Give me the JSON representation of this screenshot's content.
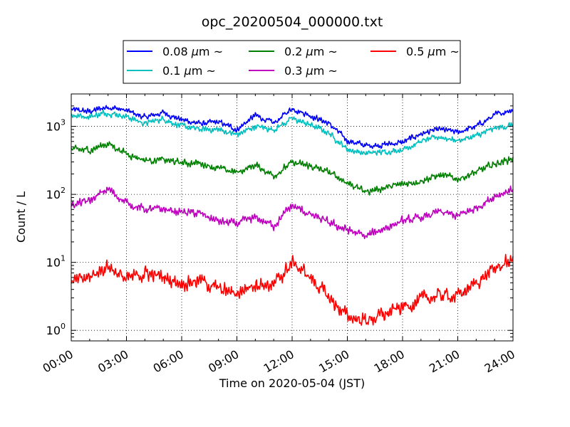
{
  "chart_data": {
    "type": "line",
    "title": "opc_20200504_000000.txt",
    "xlabel": "Time on 2020-05-04 (JST)",
    "ylabel": "Count / L",
    "xlim": [
      "2020-05-04 00:00",
      "2020-05-05 00:00"
    ],
    "ylim": [
      0.7,
      3000
    ],
    "yscale": "log",
    "grid": true,
    "legend_position": "top-center",
    "legend_columns": 3,
    "x_ticks": [
      "00:00",
      "03:00",
      "06:00",
      "09:00",
      "12:00",
      "15:00",
      "18:00",
      "21:00",
      "24:00"
    ],
    "y_ticks": [
      {
        "base": "10",
        "exp": "0"
      },
      {
        "base": "10",
        "exp": "1"
      },
      {
        "base": "10",
        "exp": "2"
      },
      {
        "base": "10",
        "exp": "3"
      }
    ],
    "x": [
      "00:00",
      "01:00",
      "02:00",
      "03:00",
      "04:00",
      "05:00",
      "06:00",
      "07:00",
      "08:00",
      "09:00",
      "10:00",
      "11:00",
      "12:00",
      "13:00",
      "14:00",
      "15:00",
      "16:00",
      "17:00",
      "18:00",
      "19:00",
      "20:00",
      "21:00",
      "22:00",
      "23:00",
      "24:00"
    ],
    "series": [
      {
        "name_value": "0.08",
        "name_unit": "μm",
        "name_suffix": "~",
        "color": "#0000ff",
        "values": [
          1750,
          1650,
          1950,
          1700,
          1350,
          1600,
          1250,
          1100,
          1150,
          900,
          1450,
          1100,
          1850,
          1450,
          1100,
          620,
          520,
          540,
          580,
          780,
          900,
          820,
          1000,
          1450,
          1800
        ],
        "noise": 0.05
      },
      {
        "name_value": "0.1",
        "name_unit": "μm",
        "name_suffix": "~",
        "color": "#00bfbf",
        "values": [
          1450,
          1400,
          1600,
          1400,
          1100,
          1300,
          1000,
          900,
          900,
          750,
          1000,
          900,
          1300,
          1050,
          800,
          460,
          400,
          420,
          460,
          600,
          700,
          620,
          720,
          930,
          1050
        ],
        "noise": 0.05
      },
      {
        "name_value": "0.2",
        "name_unit": "μm",
        "name_suffix": "~",
        "color": "#008000",
        "values": [
          450,
          450,
          560,
          400,
          320,
          320,
          290,
          290,
          240,
          210,
          270,
          190,
          290,
          260,
          210,
          150,
          110,
          125,
          140,
          160,
          190,
          170,
          210,
          280,
          340
        ],
        "noise": 0.06
      },
      {
        "name_value": "0.3",
        "name_unit": "μm",
        "name_suffix": "~",
        "color": "#bf00bf",
        "values": [
          70,
          80,
          120,
          75,
          60,
          60,
          55,
          52,
          40,
          37,
          45,
          35,
          68,
          50,
          38,
          30,
          24,
          32,
          40,
          45,
          55,
          48,
          63,
          95,
          120
        ],
        "noise": 0.07
      },
      {
        "name_value": "0.5",
        "name_unit": "μm",
        "name_suffix": "~",
        "color": "#ff0000",
        "values": [
          5,
          6,
          9,
          5.5,
          7,
          6,
          5,
          5.5,
          4,
          3.5,
          5,
          4.5,
          10,
          6,
          3,
          1.6,
          1.4,
          1.7,
          2.2,
          2.8,
          3.3,
          3.2,
          5,
          8,
          11
        ],
        "noise": 0.12
      }
    ]
  }
}
